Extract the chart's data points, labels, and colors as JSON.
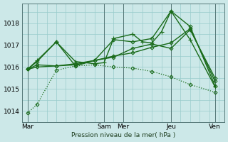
{
  "background_color": "#cce8e8",
  "grid_color": "#99cccc",
  "line_color": "#1a6b1a",
  "xlabel": "Pression niveau de la mer( hPa )",
  "ylim": [
    1013.5,
    1018.9
  ],
  "yticks": [
    1014,
    1015,
    1016,
    1017,
    1018
  ],
  "xlim": [
    -0.3,
    10.3
  ],
  "x_tick_labels": [
    "Mar",
    "Sam",
    "Mer",
    "Jeu",
    "Ven"
  ],
  "x_tick_positions": [
    0,
    4,
    5,
    7.5,
    9.8
  ],
  "num_x_grid": 10,
  "series": [
    {
      "name": "dotted_declining",
      "style": "dotted",
      "marker": "D",
      "markersize": 2.5,
      "lw": 0.9,
      "x": [
        0,
        0.5,
        1.5,
        2.5,
        3.5,
        4.5,
        5.5,
        6.5,
        7.5,
        8.5,
        9.8
      ],
      "y": [
        1013.9,
        1014.3,
        1015.85,
        1016.05,
        1016.1,
        1016.0,
        1015.95,
        1015.8,
        1015.55,
        1015.2,
        1014.85
      ]
    },
    {
      "name": "line_zigzag_cross",
      "style": "solid",
      "marker": "+",
      "markersize": 4,
      "lw": 1.0,
      "x": [
        0,
        0.5,
        1.5,
        2.5,
        3.5,
        4.0,
        4.5,
        5.5,
        6.0,
        6.5,
        7.0,
        7.5,
        8.5,
        9.8
      ],
      "y": [
        1015.9,
        1016.3,
        1017.15,
        1016.25,
        1016.15,
        1016.2,
        1017.3,
        1017.5,
        1017.15,
        1017.1,
        1017.6,
        1018.55,
        1017.25,
        1015.1
      ]
    },
    {
      "name": "line_zigzag_diamond",
      "style": "solid",
      "marker": "D",
      "markersize": 2.5,
      "lw": 1.0,
      "x": [
        0,
        0.5,
        1.5,
        2.5,
        3.5,
        4.5,
        5.5,
        6.5,
        7.5,
        8.5,
        9.8
      ],
      "y": [
        1015.9,
        1016.25,
        1017.15,
        1016.05,
        1016.3,
        1017.25,
        1017.15,
        1017.3,
        1018.55,
        1017.85,
        1015.15
      ]
    },
    {
      "name": "line_rising_diamond",
      "style": "solid",
      "marker": "D",
      "markersize": 2.5,
      "lw": 1.0,
      "x": [
        0,
        0.5,
        1.5,
        2.5,
        3.5,
        4.5,
        5.5,
        6.5,
        7.5,
        8.5,
        9.8
      ],
      "y": [
        1015.9,
        1016.1,
        1016.05,
        1016.15,
        1016.3,
        1016.45,
        1016.85,
        1017.05,
        1016.85,
        1017.7,
        1015.5
      ]
    },
    {
      "name": "line_gradual_diamond",
      "style": "solid",
      "marker": "D",
      "markersize": 2.5,
      "lw": 1.0,
      "x": [
        0,
        0.5,
        1.5,
        2.5,
        3.5,
        4.5,
        5.5,
        6.5,
        7.5,
        8.5,
        9.8
      ],
      "y": [
        1015.9,
        1016.0,
        1016.05,
        1016.1,
        1016.3,
        1016.5,
        1016.65,
        1016.9,
        1017.1,
        1017.75,
        1015.35
      ]
    }
  ]
}
